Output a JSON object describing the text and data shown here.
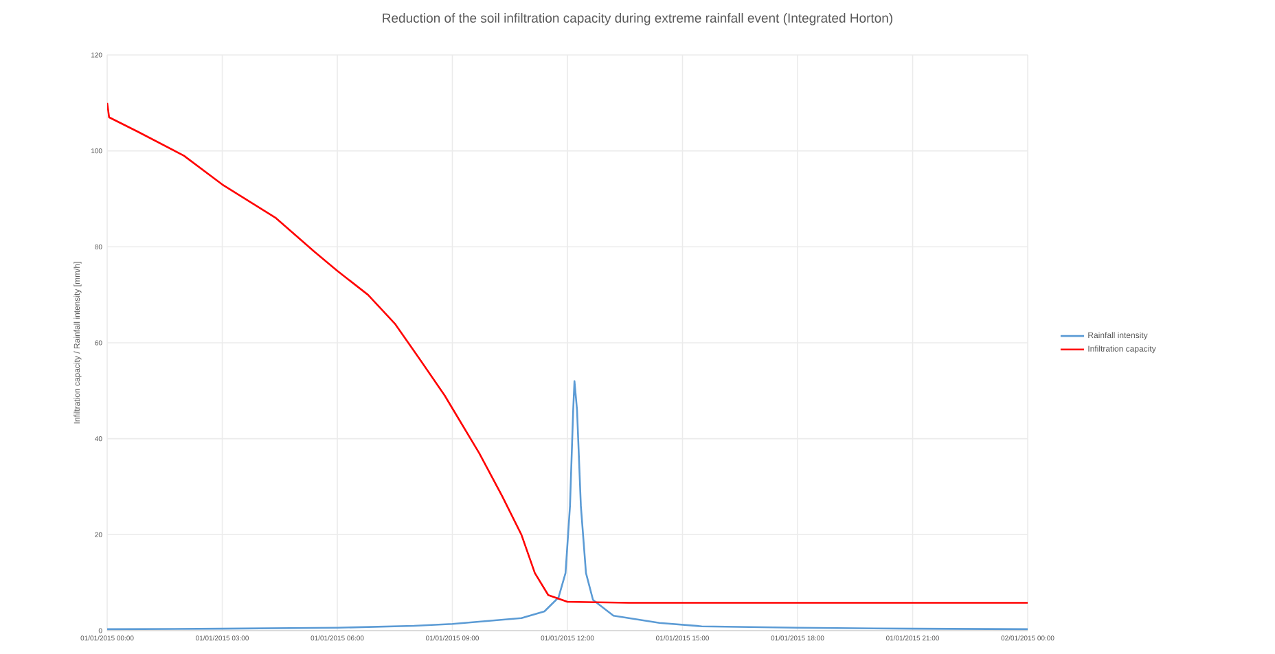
{
  "chart_data": {
    "type": "line",
    "title": "Reduction of the soil infiltration capacity during extreme rainfall event  (Integrated Horton)",
    "ylabel": "Infiltration capacity / Rainfall intensity [mm/h]",
    "xlim": [
      "2015-01-01T00:00",
      "2015-01-02T00:00"
    ],
    "xticks": [
      {
        "value": "2015-01-01T00:00",
        "label": "01/01/2015 00:00"
      },
      {
        "value": "2015-01-01T03:00",
        "label": "01/01/2015 03:00"
      },
      {
        "value": "2015-01-01T06:00",
        "label": "01/01/2015 06:00"
      },
      {
        "value": "2015-01-01T09:00",
        "label": "01/01/2015 09:00"
      },
      {
        "value": "2015-01-01T12:00",
        "label": "01/01/2015 12:00"
      },
      {
        "value": "2015-01-01T15:00",
        "label": "01/01/2015 15:00"
      },
      {
        "value": "2015-01-01T18:00",
        "label": "01/01/2015 18:00"
      },
      {
        "value": "2015-01-01T21:00",
        "label": "01/01/2015 21:00"
      },
      {
        "value": "2015-01-02T00:00",
        "label": "02/01/2015 00:00"
      }
    ],
    "ylim": [
      0,
      120
    ],
    "yticks": [
      0,
      20,
      40,
      60,
      80,
      100,
      120
    ],
    "grid": true,
    "legend": "right",
    "marker": "none",
    "line_style": "solid",
    "series": [
      {
        "name": "Rainfall intensity",
        "color": "#5b9bd5",
        "x": [
          "2015-01-01T00:00",
          "2015-01-01T03:00",
          "2015-01-01T06:00",
          "2015-01-01T08:00",
          "2015-01-01T09:00",
          "2015-01-01T10:48",
          "2015-01-01T11:24",
          "2015-01-01T11:46",
          "2015-01-01T11:57",
          "2015-01-01T12:04",
          "2015-01-01T12:09",
          "2015-01-01T12:11",
          "2015-01-01T12:15",
          "2015-01-01T12:21",
          "2015-01-01T12:29",
          "2015-01-01T12:40",
          "2015-01-01T13:12",
          "2015-01-01T14:24",
          "2015-01-01T15:30",
          "2015-01-01T18:00",
          "2015-01-01T21:00",
          "2015-01-02T00:00"
        ],
        "values": [
          0.3,
          0.4,
          0.6,
          1,
          1.4,
          2.6,
          4,
          6.9,
          12,
          26,
          46,
          52,
          46,
          26,
          12,
          6.4,
          3.1,
          1.6,
          0.9,
          0.6,
          0.4,
          0.3
        ]
      },
      {
        "name": "Infiltration capacity",
        "color": "#ff0000",
        "x": [
          "2015-01-01T00:00",
          "2015-01-01T00:03",
          "2015-01-01T00:48",
          "2015-01-01T02:00",
          "2015-01-01T03:00",
          "2015-01-01T04:24",
          "2015-01-01T05:24",
          "2015-01-01T06:00",
          "2015-01-01T06:48",
          "2015-01-01T07:30",
          "2015-01-01T08:12",
          "2015-01-01T08:48",
          "2015-01-01T09:06",
          "2015-01-01T09:42",
          "2015-01-01T10:18",
          "2015-01-01T10:48",
          "2015-01-01T11:09",
          "2015-01-01T11:30",
          "2015-01-01T12:00",
          "2015-01-01T13:36",
          "2015-01-01T18:00",
          "2015-01-02T00:00"
        ],
        "values": [
          110,
          107,
          104,
          99,
          93,
          86,
          79,
          75,
          70,
          64,
          56,
          49,
          45,
          37,
          28,
          20,
          12,
          7.4,
          6,
          5.8,
          5.8,
          5.8
        ]
      }
    ]
  }
}
